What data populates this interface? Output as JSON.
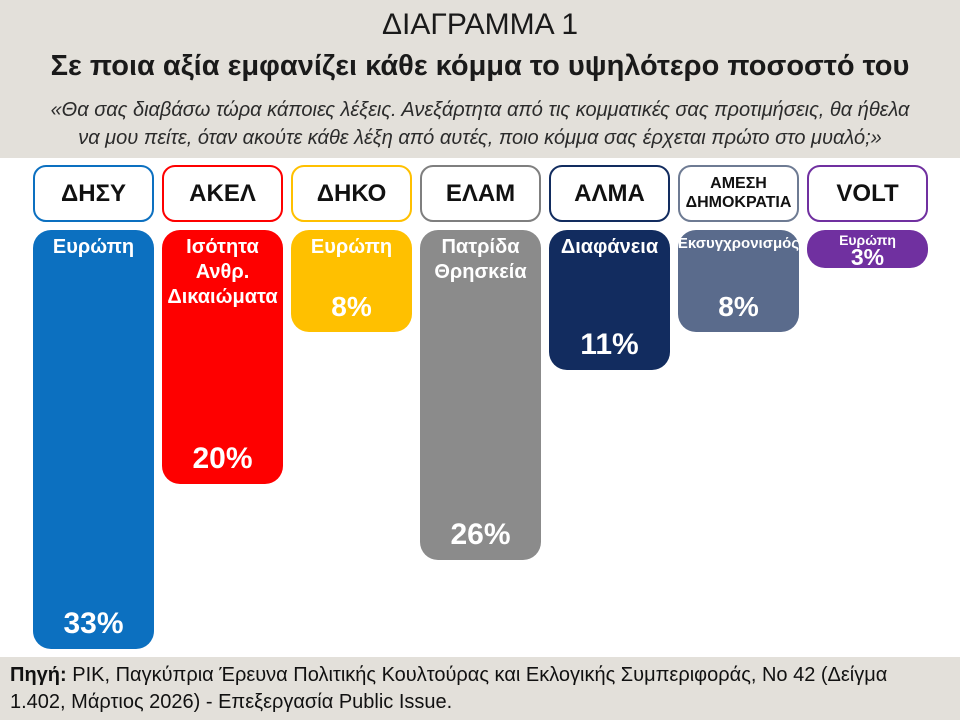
{
  "header": {
    "title": "ΔΙΑΓΡΑΜΜΑ 1",
    "subtitle": "Σε ποια αξία εμφανίζει κάθε κόμμα το υψηλότερο ποσοστό του",
    "quote_line1": "«Θα σας διαβάσω τώρα κάποιες λέξεις. Ανεξάρτητα από τις κομματικές σας προτιμήσεις, θα ήθελα",
    "quote_line2": "να μου πείτε, όταν ακούτε κάθε λέξη από αυτές, ποιο κόμμα σας έρχεται πρώτο στο μυαλό;»"
  },
  "chart_data": {
    "type": "bar",
    "orientation": "hanging_columns",
    "unit": "%",
    "title": "ΔΙΑΓΡΑΜΜΑ 1",
    "subtitle": "Σε ποια αξία εμφανίζει κάθε κόμμα το υψηλότερο ποσοστό του",
    "categories": [
      "ΔΗΣΥ",
      "ΑΚΕΛ",
      "ΔΗΚΟ",
      "ΕΛΑΜ",
      "ΑΛΜΑ",
      "ΑΜΕΣΗ ΔΗΜΟΚΡΑΤΙΑ",
      "VOLT"
    ],
    "values": [
      33,
      20,
      8,
      26,
      11,
      8,
      3
    ],
    "bars": [
      {
        "party_lines": [
          "ΔΗΣΥ"
        ],
        "label_lines": [
          "Ευρώπη"
        ],
        "value": 33,
        "percent_label": "33%",
        "color": "#0c70c0",
        "border_color": "#0c70c0"
      },
      {
        "party_lines": [
          "ΑΚΕΛ"
        ],
        "label_lines": [
          "Ισότητα",
          "Ανθρ.",
          "Δικαιώματα"
        ],
        "value": 20,
        "percent_label": "20%",
        "color": "#fe0000",
        "border_color": "#fe0000"
      },
      {
        "party_lines": [
          "ΔΗΚΟ"
        ],
        "label_lines": [
          "Ευρώπη"
        ],
        "value": 8,
        "percent_label": "8%",
        "color": "#ffc000",
        "border_color": "#ffc000"
      },
      {
        "party_lines": [
          "ΕΛΑΜ"
        ],
        "label_lines": [
          "Πατρίδα",
          "Θρησκεία"
        ],
        "value": 26,
        "percent_label": "26%",
        "color": "#8b8b8b",
        "border_color": "#7f7f7f"
      },
      {
        "party_lines": [
          "ΑΛΜΑ"
        ],
        "label_lines": [
          "Διαφάνεια"
        ],
        "value": 11,
        "percent_label": "11%",
        "color": "#122c5f",
        "border_color": "#122c5f"
      },
      {
        "party_lines": [
          "ΑΜΕΣΗ",
          "ΔΗΜΟΚΡΑΤΙΑ"
        ],
        "label_lines": [
          "Εκσυγχρονισμός"
        ],
        "value": 8,
        "percent_label": "8%",
        "color": "#5a6b8c",
        "border_color": "#6e7b93"
      },
      {
        "party_lines": [
          "VOLT"
        ],
        "label_lines": [
          "Ευρώπη"
        ],
        "value": 3,
        "percent_label": "3%",
        "color": "#7030a0",
        "border_color": "#7030a0"
      }
    ]
  },
  "footer": {
    "source_label": "Πηγή:",
    "source_text": "ΡΙΚ, Παγκύπρια Έρευνα Πολιτικής Κουλτούρας και Εκλογικής Συμπεριφοράς, Νο 42 (Δείγμα 1.402, Μάρτιος 2026) - Επεξεργασία Public Issue."
  },
  "colors": {
    "page_background": "#e3e0da",
    "chart_background": "#ffffff",
    "text": "#1a1a1a",
    "bar_text": "#ffffff"
  }
}
